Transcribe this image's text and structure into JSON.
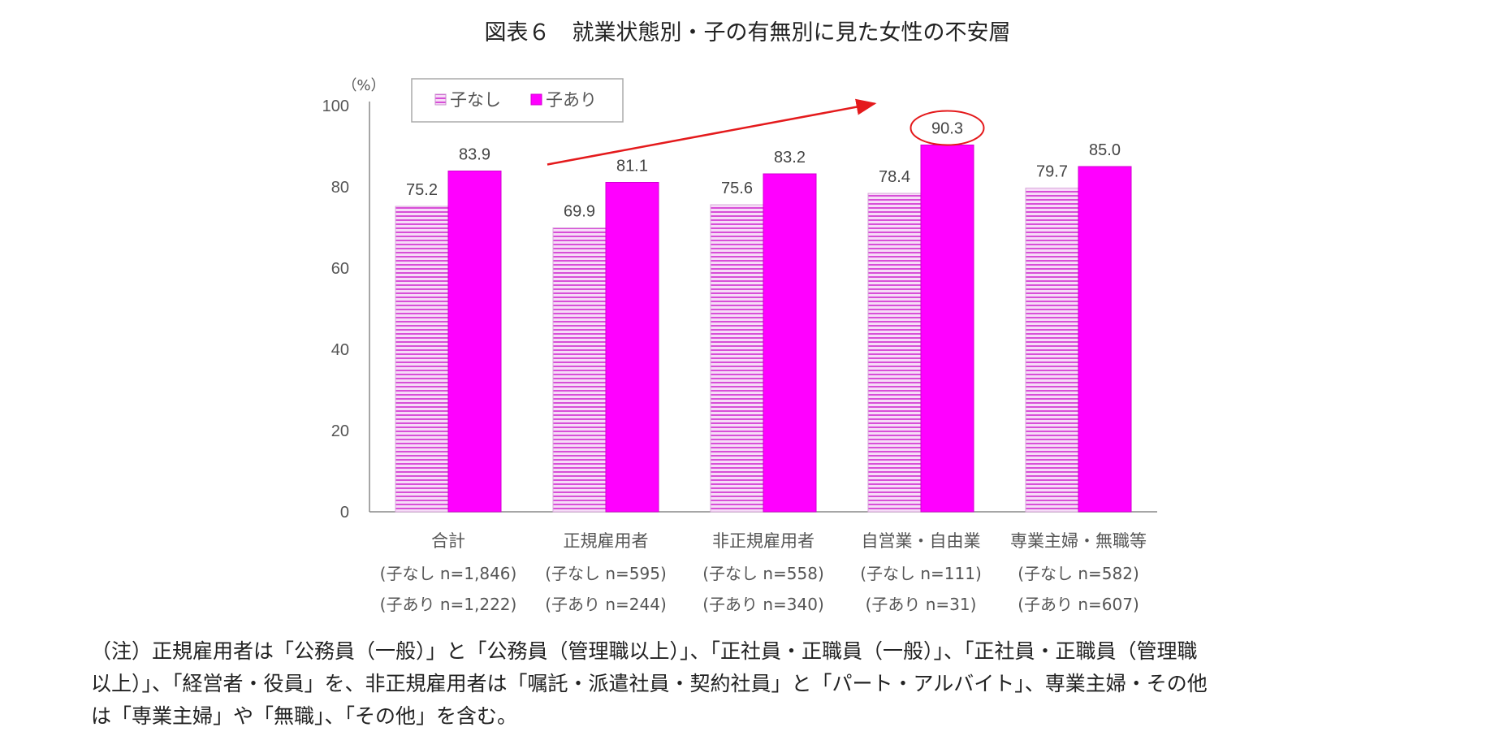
{
  "title": "図表６　就業状態別・子の有無別に見た女性の不安層",
  "chart_data": {
    "type": "bar",
    "unit": "（%）",
    "ylim": [
      0,
      100
    ],
    "yticks": [
      0,
      20,
      40,
      60,
      80,
      100
    ],
    "categories": [
      {
        "name": "合計",
        "n1": "(子なし n=1,846)",
        "n2": "(子あり n=1,222)"
      },
      {
        "name": "正規雇用者",
        "n1": "(子なし n=595)",
        "n2": "(子あり n=244)"
      },
      {
        "name": "非正規雇用者",
        "n1": "(子なし n=558)",
        "n2": "(子あり n=340)"
      },
      {
        "name": "自営業・自由業",
        "n1": "(子なし n=111)",
        "n2": "(子あり n=31)"
      },
      {
        "name": "専業主婦・無職等",
        "n1": "(子なし n=582)",
        "n2": "(子あり n=607)"
      }
    ],
    "series": [
      {
        "name": "子なし",
        "values": [
          75.2,
          69.9,
          75.6,
          78.4,
          79.7
        ],
        "labels": [
          "75.2",
          "69.9",
          "75.6",
          "78.4",
          "79.7"
        ],
        "color": "#e8bdeb",
        "stripe": "#d52fd5",
        "pattern": "horizontal-stripes"
      },
      {
        "name": "子あり",
        "values": [
          83.9,
          81.1,
          83.2,
          90.3,
          85.0
        ],
        "labels": [
          "83.9",
          "81.1",
          "83.2",
          "90.3",
          "85.0"
        ],
        "color": "#ff00ff",
        "pattern": "solid"
      }
    ],
    "legend": "top-left",
    "grid": false,
    "annotations": {
      "arrow": {
        "color": "#e41a1c",
        "from": "正規雇用者",
        "to": "自営業・自由業"
      },
      "highlight": {
        "series": "子あり",
        "category": "自営業・自由業",
        "color": "#e41a1c"
      }
    }
  },
  "note": {
    "lines": [
      "（注）正規雇用者は「公務員（一般）」と「公務員（管理職以上）」、「正社員・正職員（一般）」、「正社員・正職員（管理職",
      "以上）」、「経営者・役員」を、非正規雇用者は「嘱託・派遣社員・契約社員」と「パート・アルバイト」、専業主婦・その他",
      "は「専業主婦」や「無職」、「その他」を含む。"
    ]
  }
}
